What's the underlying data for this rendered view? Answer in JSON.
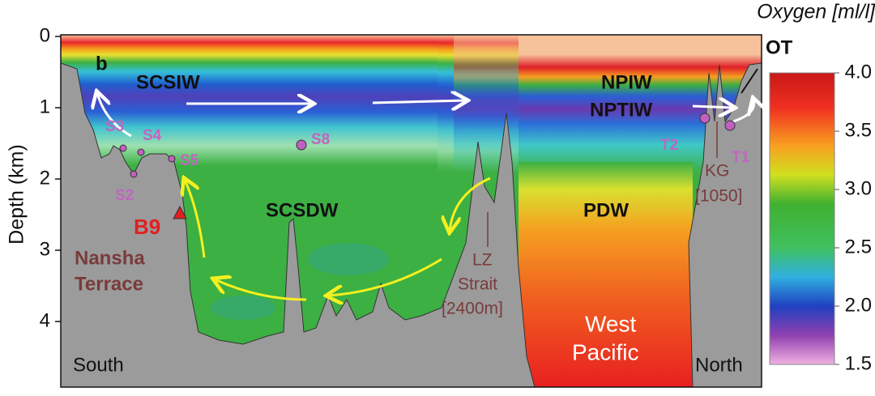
{
  "chart_data": {
    "type": "section",
    "title": "Oxygen [ml/l]",
    "ylabel": "Depth (km)",
    "ylim": [
      0,
      4.9
    ],
    "yticks": [
      0,
      1,
      2,
      3,
      4
    ],
    "colorbar": {
      "lim": [
        1.5,
        4.0
      ],
      "ticks": [
        {
          "value": 4,
          "label": "4.0"
        },
        3.5,
        {
          "value": 3,
          "label": "3.0"
        },
        2.5,
        {
          "value": 2,
          "label": "2.0"
        },
        1.5
      ]
    },
    "labels": {
      "panel": "b",
      "scsiw": "SCSIW",
      "npiw": "NPIW",
      "nptiw": "NPTIW",
      "ot": "OT",
      "s3": "S3",
      "s4": "S4",
      "s5": "S5",
      "s2": "S2",
      "s8": "S8",
      "b9": "B9",
      "nansha": "Nansha",
      "terrace": "Terrace",
      "scsdw": "SCSDW",
      "pdw": "PDW",
      "lz": "LZ",
      "strait": "Strait",
      "lz_depth": "[2400m]",
      "kg": "KG",
      "kg_depth": "[1050]",
      "t2": "T2",
      "t1": "T1",
      "west": "West",
      "pacific": "Pacific",
      "south": "South",
      "north": "North"
    }
  }
}
